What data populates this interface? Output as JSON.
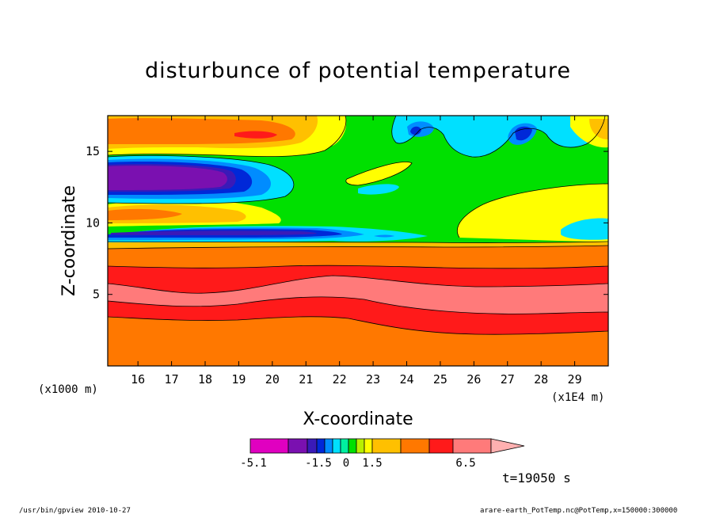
{
  "chart_data": {
    "type": "heatmap",
    "title": "disturbunce of potential temperature",
    "xlabel": "X-coordinate",
    "ylabel": "Z-coordinate",
    "x_unit_label": "(x1E4 m)",
    "y_unit_label": "(x1000 m)",
    "x_ticks": [
      "16",
      "17",
      "18",
      "19",
      "20",
      "21",
      "22",
      "23",
      "24",
      "25",
      "26",
      "27",
      "28",
      "29"
    ],
    "y_ticks": [
      "5",
      "10",
      "15"
    ],
    "xlim": [
      15.1,
      30
    ],
    "ylim": [
      0,
      17.5
    ],
    "colorbar": {
      "tick_labels": [
        "-5.1",
        "-1.5",
        "0",
        "1.5",
        "6.5"
      ],
      "colors": [
        "#e000c0",
        "#7a10b0",
        "#3a1ab8",
        "#0028d8",
        "#008cff",
        "#00e0ff",
        "#00f0a0",
        "#00e000",
        "#b8f000",
        "#ffff00",
        "#ffc000",
        "#ff7800",
        "#ff1a1a",
        "#ff7a7a",
        "#ffb0b0"
      ]
    },
    "layers": [
      {
        "name": "band-orange-bottom",
        "z_range": [
          0,
          3.2
        ],
        "color": "#ff7800"
      },
      {
        "name": "band-red-low",
        "z_range": [
          3.2,
          5.0
        ],
        "color": "#ff1a1a"
      },
      {
        "name": "band-pink",
        "z_range": [
          5.0,
          6.5
        ],
        "color": "#ff7a7a"
      },
      {
        "name": "band-red-high",
        "z_range": [
          6.5,
          7.5
        ],
        "color": "#ff1a1a"
      },
      {
        "name": "band-orange-upper",
        "z_range": [
          7.5,
          8.5
        ],
        "color": "#ff7800"
      },
      {
        "name": "band-yellow-orange",
        "z_range": [
          8.5,
          9.0
        ],
        "color": "#ffc000"
      }
    ],
    "features": [
      {
        "name": "purple-core",
        "x": 17.5,
        "z": 13.5,
        "value": -5.1
      },
      {
        "name": "dark-blue-streak",
        "x": 19,
        "z": 9.7,
        "value": -4.0
      },
      {
        "name": "upper-orange-max",
        "x": 19.5,
        "z": 16.3,
        "value": 3.0
      },
      {
        "name": "blue-spot-1",
        "x": 24.2,
        "z": 16.6,
        "value": -3.0
      },
      {
        "name": "blue-spot-2",
        "x": 27.3,
        "z": 16.5,
        "value": -3.0
      }
    ]
  },
  "time_label": "t=19050 s",
  "footer": {
    "left": "/usr/bin/gpview   2010-10-27",
    "right": "arare-earth_PotTemp.nc@PotTemp,x=150000:300000"
  }
}
